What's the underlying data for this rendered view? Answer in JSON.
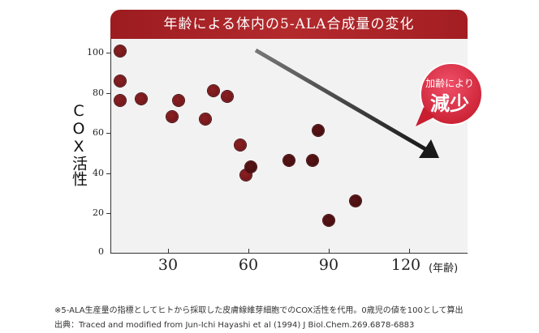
{
  "chart_data": {
    "type": "scatter",
    "title": "年齢による体内の5-ALA合成量の変化",
    "xlabel": "(年齢)",
    "ylabel": "COX活性",
    "xlim": [
      8.5,
      142
    ],
    "ylim": [
      0,
      107
    ],
    "x_ticks": [
      30,
      60,
      90,
      120
    ],
    "y_ticks": [
      0,
      20,
      40,
      60,
      80,
      100
    ],
    "grid": false,
    "legend": null,
    "points": [
      {
        "x": 12,
        "y": 101
      },
      {
        "x": 12,
        "y": 86
      },
      {
        "x": 12,
        "y": 76
      },
      {
        "x": 20,
        "y": 77
      },
      {
        "x": 31.5,
        "y": 68
      },
      {
        "x": 34,
        "y": 76
      },
      {
        "x": 44,
        "y": 67
      },
      {
        "x": 47,
        "y": 81
      },
      {
        "x": 52,
        "y": 78
      },
      {
        "x": 57,
        "y": 54
      },
      {
        "x": 59,
        "y": 39
      },
      {
        "x": 61,
        "y": 43
      },
      {
        "x": 75,
        "y": 46
      },
      {
        "x": 84,
        "y": 46
      },
      {
        "x": 86,
        "y": 61
      },
      {
        "x": 90,
        "y": 16
      },
      {
        "x": 100,
        "y": 26
      }
    ],
    "annotations": [
      {
        "type": "arrow",
        "text": "",
        "from": [
          62,
          101
        ],
        "to": [
          130,
          47
        ]
      },
      {
        "type": "badge",
        "text": "加齢により減少"
      }
    ]
  },
  "title": "年齢による体内の5-ALA合成量の変化",
  "y_axis": {
    "title": "COX活性",
    "labels": [
      "100",
      "80",
      "60",
      "40",
      "20",
      "0"
    ]
  },
  "x_axis": {
    "labels": [
      "30",
      "60",
      "90",
      "120"
    ],
    "unit": "(年齢)"
  },
  "badge": {
    "top": "加齢により",
    "main": "減少"
  },
  "footnotes": {
    "line1": "※5-ALA生産量の指標としてヒトから採取した皮膚線維芽細胞でのCOX活性を代用。0歳児の値を100として算出",
    "line2": "出典：Traced and modified from Jun-Ichi Hayashi et al (1994) J Biol.Chem.269.6878-6883"
  },
  "colors": {
    "title_bar": "#a52226",
    "dot": "#7a1a1d",
    "badge": "#d9283a",
    "arrow": "#2a2a2a",
    "plot_bg": "#f2f2f3"
  }
}
